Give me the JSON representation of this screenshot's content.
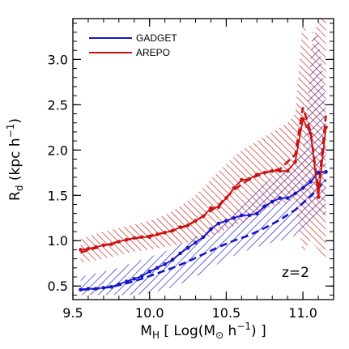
{
  "chart_data": {
    "type": "line",
    "xlabel_parts": {
      "pre": "M",
      "sub": "H",
      "post": " [ Log(M",
      "sun": "⊙",
      "post2": " h",
      "sup": "−1",
      "post3": ") ]"
    },
    "ylabel_parts": {
      "pre": "R",
      "sub": "d",
      "post": " (kpc h",
      "sup": "−1",
      "post2": ")"
    },
    "annotation": "z=2",
    "xlim": [
      9.5,
      11.2
    ],
    "ylim": [
      0.35,
      3.45
    ],
    "x_ticks": [
      "9.5",
      "10.0",
      "10.5",
      "11.0"
    ],
    "x_tick_values": [
      9.5,
      10.0,
      10.5,
      11.0
    ],
    "y_ticks": [
      "0.5",
      "1.0",
      "1.5",
      "2.0",
      "2.5",
      "3.0"
    ],
    "y_tick_values": [
      0.5,
      1.0,
      1.5,
      2.0,
      2.5,
      3.0
    ],
    "legend_position": "top-left",
    "series": [
      {
        "name": "GADGET",
        "color": "#1414c8",
        "median": {
          "x": [
            9.55,
            9.6,
            9.65,
            9.7,
            9.75,
            9.8,
            9.85,
            9.9,
            9.95,
            10.0,
            10.05,
            10.1,
            10.15,
            10.2,
            10.25,
            10.3,
            10.35,
            10.4,
            10.45,
            10.5,
            10.55,
            10.6,
            10.65,
            10.7,
            10.75,
            10.8,
            10.85,
            10.9,
            10.95,
            11.0,
            11.05,
            11.1,
            11.15
          ],
          "y": [
            0.46,
            0.47,
            0.47,
            0.48,
            0.49,
            0.52,
            0.55,
            0.58,
            0.61,
            0.66,
            0.7,
            0.74,
            0.79,
            0.86,
            0.92,
            0.98,
            1.04,
            1.13,
            1.19,
            1.22,
            1.25,
            1.28,
            1.28,
            1.3,
            1.38,
            1.43,
            1.47,
            1.47,
            1.52,
            1.58,
            1.65,
            1.75,
            1.76
          ]
        },
        "mean": {
          "x": [
            9.55,
            9.65,
            9.75,
            9.85,
            9.95,
            10.05,
            10.15,
            10.25,
            10.35,
            10.45,
            10.55,
            10.65,
            10.75,
            10.85,
            10.95,
            11.05,
            11.15
          ],
          "y": [
            0.46,
            0.47,
            0.49,
            0.53,
            0.58,
            0.64,
            0.7,
            0.77,
            0.85,
            0.93,
            1.0,
            1.06,
            1.14,
            1.23,
            1.34,
            1.49,
            1.67
          ]
        },
        "band": {
          "x": [
            9.55,
            9.6,
            9.7,
            9.8,
            9.9,
            10.0,
            10.1,
            10.2,
            10.3,
            10.4,
            10.5,
            10.6,
            10.7,
            10.8,
            10.9,
            11.0,
            11.03,
            11.06,
            11.09,
            11.12,
            11.15
          ],
          "lower": [
            0.4,
            0.4,
            0.4,
            0.4,
            0.4,
            0.42,
            0.46,
            0.52,
            0.6,
            0.7,
            0.8,
            0.87,
            0.93,
            0.98,
            1.02,
            1.1,
            1.15,
            1.2,
            1.25,
            1.28,
            1.3
          ],
          "upper": [
            0.6,
            0.62,
            0.66,
            0.7,
            0.76,
            0.82,
            0.88,
            0.96,
            1.04,
            1.14,
            1.26,
            1.38,
            1.55,
            1.7,
            1.85,
            2.0,
            2.5,
            3.3,
            3.3,
            3.0,
            2.5
          ]
        }
      },
      {
        "name": "AREPO",
        "color": "#c81414",
        "median": {
          "x": [
            9.55,
            9.6,
            9.65,
            9.7,
            9.75,
            9.8,
            9.85,
            9.9,
            9.95,
            10.0,
            10.05,
            10.1,
            10.15,
            10.2,
            10.25,
            10.3,
            10.35,
            10.4,
            10.45,
            10.5,
            10.55,
            10.6,
            10.65,
            10.7,
            10.75,
            10.8,
            10.85,
            10.9,
            10.95,
            11.0,
            11.05,
            11.1,
            11.15
          ],
          "y": [
            0.9,
            0.91,
            0.93,
            0.95,
            0.96,
            0.99,
            1.01,
            1.03,
            1.04,
            1.04,
            1.07,
            1.09,
            1.11,
            1.15,
            1.17,
            1.22,
            1.27,
            1.36,
            1.37,
            1.47,
            1.58,
            1.67,
            1.68,
            1.73,
            1.75,
            1.77,
            1.77,
            1.77,
            1.87,
            2.34,
            2.18,
            1.48,
            2.25
          ]
        },
        "mean": {
          "x": [
            9.55,
            9.65,
            9.75,
            9.85,
            9.95,
            10.05,
            10.15,
            10.25,
            10.35,
            10.45,
            10.55,
            10.65,
            10.75,
            10.85,
            10.95,
            11.0,
            11.05,
            11.1,
            11.15
          ],
          "y": [
            0.87,
            0.92,
            0.97,
            1.01,
            1.04,
            1.07,
            1.11,
            1.17,
            1.27,
            1.39,
            1.56,
            1.68,
            1.75,
            1.79,
            1.95,
            2.47,
            2.2,
            1.56,
            2.38
          ]
        },
        "band": {
          "x": [
            9.55,
            9.6,
            9.7,
            9.8,
            9.9,
            10.0,
            10.1,
            10.2,
            10.3,
            10.4,
            10.5,
            10.6,
            10.7,
            10.8,
            10.9,
            10.95,
            11.0,
            11.05,
            11.1,
            11.15
          ],
          "lower": [
            0.75,
            0.77,
            0.8,
            0.84,
            0.88,
            0.9,
            0.93,
            0.96,
            1.0,
            1.05,
            1.12,
            1.2,
            1.3,
            1.38,
            1.42,
            1.45,
            0.85,
            1.0,
            0.9,
            0.75
          ],
          "upper": [
            1.02,
            1.05,
            1.1,
            1.14,
            1.18,
            1.22,
            1.28,
            1.38,
            1.5,
            1.68,
            1.85,
            2.0,
            2.1,
            2.2,
            2.3,
            2.4,
            3.45,
            3.1,
            3.45,
            3.45
          ]
        }
      }
    ]
  }
}
